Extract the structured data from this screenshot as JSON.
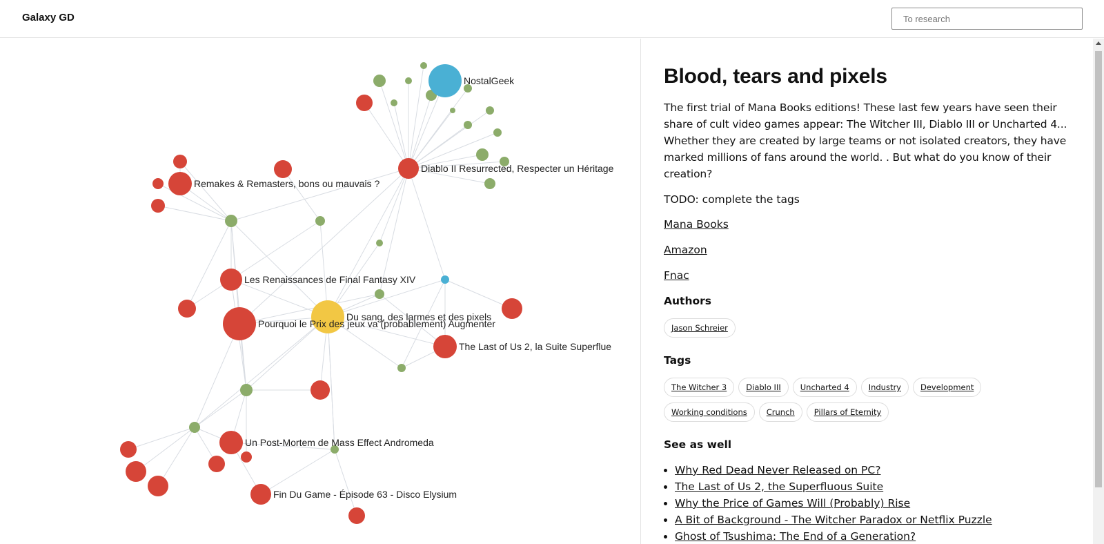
{
  "header": {
    "brand": "Galaxy GD",
    "search_placeholder": "To research"
  },
  "colors": {
    "book": "#f2c744",
    "video": "#d64538",
    "tag": "#8cac6a",
    "channel": "#4ab0d4",
    "edge": "#d8dce2"
  },
  "graph": {
    "nodes": [
      {
        "id": "nostalgeek",
        "label": "NostalGeek",
        "type": "channel",
        "size": "xl"
      },
      {
        "id": "diablo2",
        "label": "Diablo II Resurrected, Respecter un Héritage",
        "type": "video",
        "size": "m"
      },
      {
        "id": "remakes",
        "label": "Remakes & Remasters, bons ou mauvais ?",
        "type": "video",
        "size": "l"
      },
      {
        "id": "renaissances",
        "label": "Les Renaissances de Final Fantasy XIV",
        "type": "video",
        "size": "l"
      },
      {
        "id": "dusang",
        "label": "Du sang, des larmes et des pixels",
        "type": "book",
        "size": "xl"
      },
      {
        "id": "prix",
        "label": "Pourquoi le Prix des jeux va (probablement) Augmenter",
        "type": "video",
        "size": "xl"
      },
      {
        "id": "tlou2",
        "label": "The Last of Us 2, la Suite Superflue",
        "type": "video",
        "size": "l"
      },
      {
        "id": "masseffect",
        "label": "Un Post-Mortem de Mass Effect Andromeda",
        "type": "video",
        "size": "l"
      },
      {
        "id": "fdg",
        "label": "Fin Du Game - Épisode 63 - Disco Elysium",
        "type": "video",
        "size": "l"
      }
    ]
  },
  "detail": {
    "title": "Blood, tears and pixels",
    "description": "The first trial of Mana Books editions! These last few years have seen their share of cult video games appear: The Witcher III, Diablo III or Uncharted 4... Whether they are created by large teams or not isolated creators, they have marked millions of fans around the world. . But what do you know of their creation?",
    "todo": "TODO: complete the tags",
    "links": [
      "Mana Books",
      "Amazon",
      "Fnac"
    ],
    "authors_heading": "Authors",
    "authors": [
      "Jason Schreier"
    ],
    "tags_heading": "Tags",
    "tags": [
      "The Witcher 3",
      "Diablo III",
      "Uncharted 4",
      "Industry",
      "Development",
      "Working conditions",
      "Crunch",
      "Pillars of Eternity"
    ],
    "see_heading": "See as well",
    "see_also": [
      "Why Red Dead Never Released on PC?",
      "The Last of Us 2, the Superfluous Suite",
      "Why the Price of Games Will (Probably) Rise",
      "A Bit of Background - The Witcher Paradox or Netflix Puzzle",
      "Ghost of Tsushima: The End of a Generation?"
    ]
  }
}
